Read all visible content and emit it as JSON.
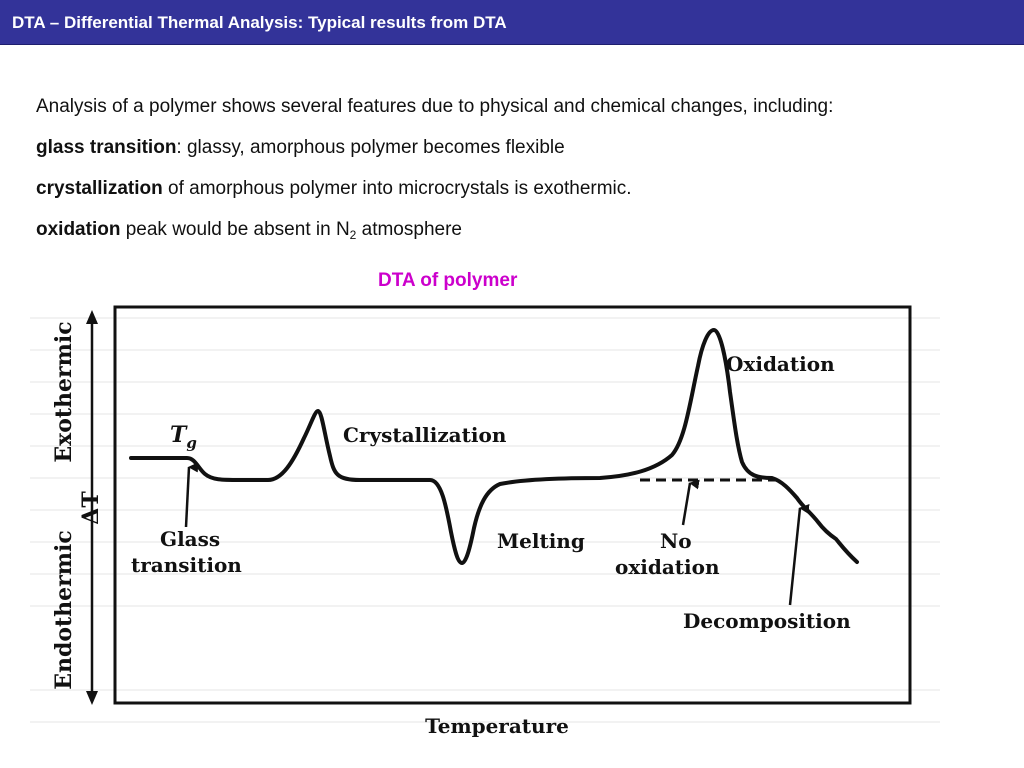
{
  "title": "DTA – Differential Thermal Analysis: Typical results from DTA",
  "intro": "Analysis of a polymer shows several features due to physical and chemical changes, including:",
  "items": [
    {
      "term": "glass transition",
      "sep": ": ",
      "text": "glassy, amorphous polymer becomes flexible"
    },
    {
      "term": "crystallization",
      "sep": " ",
      "text": "of amorphous polymer into microcrystals is exothermic."
    },
    {
      "term": "oxidation",
      "sep": " ",
      "text_before": "peak would be absent in N",
      "subscript": "2",
      "text_after": " atmosphere"
    }
  ],
  "figure": {
    "caption": "DTA of polymer",
    "y_top_label": "Exothermic",
    "y_mid_label": "ΔT",
    "y_bottom_label": "Endothermic",
    "x_label": "Temperature",
    "labels": {
      "tg_main": "T",
      "tg_sub": "g",
      "crystallization": "Crystallization",
      "oxidation": "Oxidation",
      "glass_line1": "Glass",
      "glass_line2": "transition",
      "melting": "Melting",
      "no_line1": "No",
      "no_line2": "oxidation",
      "decomposition": "Decomposition"
    }
  }
}
